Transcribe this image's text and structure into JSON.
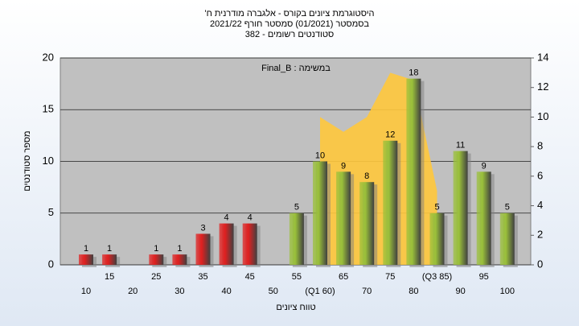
{
  "chart_data": {
    "type": "bar",
    "title_lines": [
      "היסטוגרמת ציונים בקורס - אלגברה מודרנית ח'",
      "בסמסטר (01/2021) סמסטר חורף 2021/22",
      "סטודנטים רשומים - 382"
    ],
    "annotation": "במשימה : Final_B",
    "x_label": "טווח ציונים",
    "y_label": "מספר סטודנטים",
    "categories": [
      "10",
      "15",
      "20",
      "25",
      "30",
      "35",
      "40",
      "45",
      "50",
      "55",
      "(Q1 60)",
      "65",
      "70",
      "75",
      "80",
      "(Q3 85)",
      "90",
      "95",
      "100"
    ],
    "values": [
      1,
      1,
      null,
      1,
      1,
      3,
      4,
      4,
      null,
      5,
      10,
      9,
      8,
      12,
      18,
      5,
      11,
      9,
      5
    ],
    "bar_colors": [
      "#e02020",
      "#e02020",
      "#e02020",
      "#e02020",
      "#e02020",
      "#e02020",
      "#e02020",
      "#e02020",
      "#e02020",
      "#9ac03a",
      "#9ac03a",
      "#9ac03a",
      "#9ac03a",
      "#9ac03a",
      "#9ac03a",
      "#9ac03a",
      "#9ac03a",
      "#9ac03a",
      "#9ac03a"
    ],
    "area": {
      "axis": "y2",
      "color": "#ffc83c",
      "values": [
        null,
        null,
        null,
        null,
        null,
        null,
        null,
        null,
        null,
        null,
        10,
        9,
        10,
        13,
        12.5,
        5,
        null,
        null,
        null
      ]
    },
    "ylim": [
      0,
      20
    ],
    "yticks": [
      0,
      5,
      10,
      15,
      20
    ],
    "y2lim": [
      0,
      14
    ],
    "y2ticks": [
      0,
      2,
      4,
      6,
      8,
      10,
      12,
      14
    ],
    "grid": true
  }
}
